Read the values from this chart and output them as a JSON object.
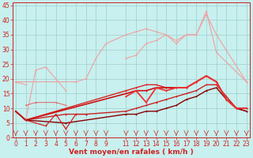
{
  "xlabel": "Vent moyen/en rafales ( km/h )",
  "background_color": "#c8f0ee",
  "grid_color": "#9ecece",
  "x": [
    0,
    1,
    2,
    3,
    4,
    5,
    6,
    7,
    8,
    9,
    11,
    12,
    13,
    14,
    15,
    16,
    17,
    18,
    19,
    20,
    21,
    22,
    23
  ],
  "series": [
    {
      "y": [
        19,
        18,
        null,
        null,
        null,
        null,
        null,
        null,
        null,
        null,
        null,
        null,
        null,
        null,
        null,
        null,
        null,
        null,
        null,
        null,
        null,
        null,
        null
      ],
      "color": "#f0a0a0",
      "lw": 0.8
    },
    {
      "y": [
        null,
        6,
        23,
        24,
        null,
        16,
        null,
        null,
        null,
        null,
        null,
        null,
        null,
        null,
        null,
        null,
        null,
        null,
        null,
        null,
        null,
        null,
        null
      ],
      "color": "#f0a0a0",
      "lw": 0.8
    },
    {
      "y": [
        19,
        null,
        null,
        null,
        null,
        null,
        19,
        20,
        27,
        32,
        35,
        36,
        37,
        36,
        35,
        33,
        35,
        35,
        43,
        29,
        null,
        null,
        19
      ],
      "color": "#f0a0a0",
      "lw": 0.8
    },
    {
      "y": [
        null,
        null,
        null,
        null,
        null,
        null,
        null,
        null,
        null,
        null,
        27,
        28,
        32,
        33,
        35,
        32,
        35,
        35,
        42,
        35,
        null,
        null,
        19
      ],
      "color": "#f0a0a0",
      "lw": 0.8
    },
    {
      "y": [
        null,
        11,
        12,
        null,
        12,
        11,
        null,
        null,
        null,
        null,
        null,
        null,
        null,
        null,
        null,
        null,
        null,
        null,
        null,
        null,
        null,
        null,
        null
      ],
      "color": "#e07070",
      "lw": 0.8
    },
    {
      "y": [
        9,
        6,
        null,
        null,
        null,
        null,
        null,
        null,
        null,
        null,
        16,
        17,
        18,
        18,
        17,
        17,
        17,
        19,
        21,
        19,
        13,
        10,
        10
      ],
      "color": "#dd2222",
      "lw": 1.0
    },
    {
      "y": [
        9,
        6,
        null,
        null,
        null,
        null,
        null,
        null,
        null,
        null,
        15,
        16,
        16,
        17,
        17,
        17,
        17,
        19,
        21,
        19,
        13,
        10,
        10
      ],
      "color": "#cc1111",
      "lw": 1.2
    },
    {
      "y": [
        9,
        6,
        null,
        null,
        null,
        8,
        null,
        8,
        null,
        null,
        9,
        10,
        11,
        12,
        13,
        14,
        15,
        16,
        18,
        18,
        14,
        10,
        9
      ],
      "color": "#cc2222",
      "lw": 1.0
    },
    {
      "y": [
        9,
        6,
        null,
        null,
        null,
        5,
        null,
        null,
        null,
        null,
        8,
        8,
        9,
        9,
        10,
        11,
        13,
        14,
        16,
        17,
        13,
        10,
        9
      ],
      "color": "#880000",
      "lw": 1.0
    },
    {
      "y": [
        9,
        6,
        null,
        4,
        8,
        3,
        8,
        8,
        null,
        null,
        null,
        null,
        null,
        null,
        null,
        null,
        null,
        null,
        null,
        null,
        null,
        null,
        null
      ],
      "color": "#cc2222",
      "lw": 0.9
    },
    {
      "y": [
        null,
        null,
        null,
        null,
        null,
        null,
        null,
        null,
        null,
        null,
        14,
        16,
        12,
        17,
        16,
        17,
        17,
        19,
        21,
        19,
        13,
        10,
        10
      ],
      "color": "#ee3333",
      "lw": 1.3
    }
  ],
  "ylim": [
    0,
    46
  ],
  "xlim": [
    -0.3,
    23.3
  ],
  "yticks": [
    0,
    5,
    10,
    15,
    20,
    25,
    30,
    35,
    40,
    45
  ],
  "xticks": [
    0,
    1,
    2,
    3,
    4,
    5,
    6,
    7,
    8,
    9,
    11,
    12,
    13,
    14,
    15,
    16,
    17,
    18,
    19,
    20,
    21,
    22,
    23
  ],
  "tick_color": "#cc2222",
  "axis_color": "#cc2222",
  "label_color": "#cc2222",
  "label_fontsize": 6.5,
  "tick_fontsize": 5.5
}
